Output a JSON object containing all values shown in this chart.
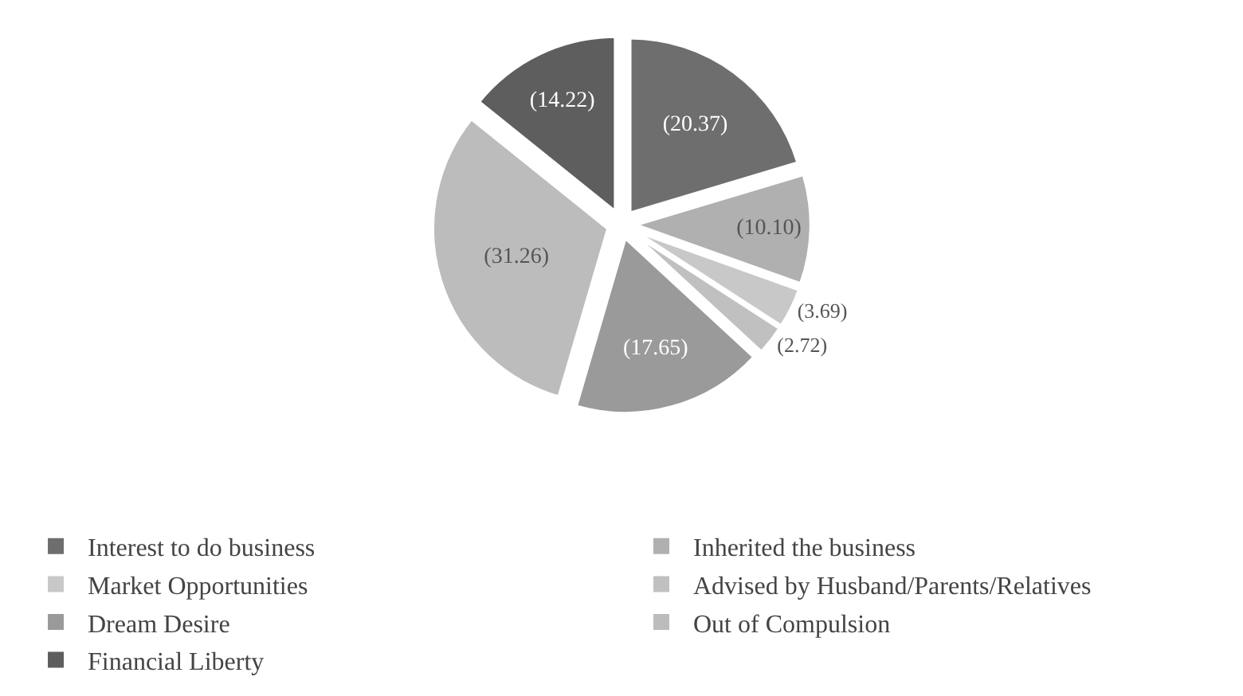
{
  "chart_data": {
    "type": "pie",
    "categories": [
      "Interest to do business",
      "Inherited the business",
      "Market Opportunities",
      "Advised by Husband/Parents/Relatives",
      "Dream Desire",
      "Out of Compulsion",
      "Financial Liberty"
    ],
    "values": [
      20.37,
      10.1,
      3.69,
      2.72,
      17.65,
      31.26,
      14.22
    ],
    "value_labels": [
      "(20.37)",
      "(10.10)",
      "(3.69)",
      "(2.72)",
      "(17.65)",
      "(31.26)",
      "(14.22)"
    ],
    "colors": [
      "#6e6e6e",
      "#b0b0b0",
      "#c8c8c8",
      "#c0c0c0",
      "#9a9a9a",
      "#bcbcbc",
      "#5e5e5e"
    ],
    "legend": "bottom"
  }
}
